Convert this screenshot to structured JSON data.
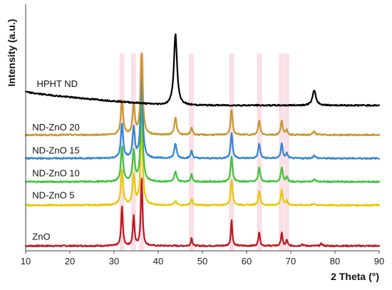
{
  "chart_data": {
    "type": "line",
    "title": "",
    "xlabel": "2 Theta (°)",
    "ylabel": "Intensity (a.u.)",
    "xlim": [
      10,
      90
    ],
    "ylim": [
      0,
      100
    ],
    "xticks": [
      10,
      20,
      30,
      40,
      50,
      60,
      70,
      80,
      90
    ],
    "xtick_labels": [
      "10",
      "20",
      "30",
      "40",
      "50",
      "60",
      "70",
      "80",
      "90"
    ],
    "yticks_shown": false,
    "grid": false,
    "legend": "none",
    "highlight_bands": [
      {
        "x": 31.8,
        "color": "#f4b8c8"
      },
      {
        "x": 34.4,
        "color": "#f4b8c8"
      },
      {
        "x": 36.25,
        "color": "#f4b8c8"
      },
      {
        "x": 47.5,
        "color": "#f4b8c8"
      },
      {
        "x": 56.6,
        "color": "#f4b8c8"
      },
      {
        "x": 62.9,
        "color": "#f4b8c8"
      },
      {
        "x": 67.9,
        "color": "#f4b8c8"
      },
      {
        "x": 69.1,
        "color": "#f4b8c8"
      }
    ],
    "series": [
      {
        "name": "ZnO",
        "color": "#c0161e",
        "baseline": 2,
        "label_x": 11.5,
        "label_y": 4.5,
        "peaks": [
          {
            "x": 31.8,
            "h": 16,
            "w": 0.22
          },
          {
            "x": 34.45,
            "h": 12,
            "w": 0.22
          },
          {
            "x": 36.25,
            "h": 28,
            "w": 0.22
          },
          {
            "x": 47.55,
            "h": 3.5,
            "w": 0.18
          },
          {
            "x": 56.6,
            "h": 10.5,
            "w": 0.2
          },
          {
            "x": 62.85,
            "h": 6,
            "w": 0.2
          },
          {
            "x": 67.95,
            "h": 5.5,
            "w": 0.2
          },
          {
            "x": 69.1,
            "h": 2.5,
            "w": 0.18
          },
          {
            "x": 72.6,
            "h": 0.8,
            "w": 0.2
          },
          {
            "x": 76.95,
            "h": 1,
            "w": 0.2
          }
        ]
      },
      {
        "name": "ND-ZnO 5",
        "color": "#e8c800",
        "baseline": 18.5,
        "label_x": 11.5,
        "label_y": 21.3,
        "peaks": [
          {
            "x": 31.8,
            "h": 14,
            "w": 0.3
          },
          {
            "x": 34.45,
            "h": 12,
            "w": 0.3
          },
          {
            "x": 36.25,
            "h": 33,
            "w": 0.3
          },
          {
            "x": 43.9,
            "h": 1.5,
            "w": 0.3
          },
          {
            "x": 47.55,
            "h": 2.5,
            "w": 0.25
          },
          {
            "x": 56.6,
            "h": 10.5,
            "w": 0.25
          },
          {
            "x": 62.85,
            "h": 6,
            "w": 0.25
          },
          {
            "x": 67.95,
            "h": 6,
            "w": 0.25
          },
          {
            "x": 69.1,
            "h": 2,
            "w": 0.22
          },
          {
            "x": 75.3,
            "h": 0.6,
            "w": 0.3
          }
        ]
      },
      {
        "name": "ND-ZnO 10",
        "color": "#3cc43c",
        "baseline": 28,
        "label_x": 11.5,
        "label_y": 30.2,
        "peaks": [
          {
            "x": 31.8,
            "h": 14,
            "w": 0.3
          },
          {
            "x": 34.45,
            "h": 12,
            "w": 0.3
          },
          {
            "x": 36.25,
            "h": 33,
            "w": 0.3
          },
          {
            "x": 43.9,
            "h": 4,
            "w": 0.3
          },
          {
            "x": 47.55,
            "h": 3,
            "w": 0.25
          },
          {
            "x": 56.6,
            "h": 10.5,
            "w": 0.25
          },
          {
            "x": 62.85,
            "h": 6,
            "w": 0.25
          },
          {
            "x": 67.95,
            "h": 6,
            "w": 0.25
          },
          {
            "x": 69.1,
            "h": 2,
            "w": 0.22
          },
          {
            "x": 75.3,
            "h": 1,
            "w": 0.3
          }
        ]
      },
      {
        "name": "ND-ZnO 15",
        "color": "#2e86d8",
        "baseline": 37.5,
        "label_x": 11.5,
        "label_y": 39.5,
        "peaks": [
          {
            "x": 31.8,
            "h": 14,
            "w": 0.3
          },
          {
            "x": 34.45,
            "h": 12,
            "w": 0.3
          },
          {
            "x": 36.25,
            "h": 33,
            "w": 0.3
          },
          {
            "x": 43.9,
            "h": 6,
            "w": 0.3
          },
          {
            "x": 47.55,
            "h": 3,
            "w": 0.25
          },
          {
            "x": 56.6,
            "h": 10.5,
            "w": 0.25
          },
          {
            "x": 62.85,
            "h": 6,
            "w": 0.25
          },
          {
            "x": 67.95,
            "h": 6,
            "w": 0.25
          },
          {
            "x": 69.1,
            "h": 2,
            "w": 0.22
          },
          {
            "x": 75.3,
            "h": 1.2,
            "w": 0.3
          }
        ]
      },
      {
        "name": "ND-ZnO 20",
        "color": "#c8962a",
        "baseline": 47,
        "label_x": 11.5,
        "label_y": 48.8,
        "peaks": [
          {
            "x": 31.8,
            "h": 14,
            "w": 0.3
          },
          {
            "x": 34.45,
            "h": 12,
            "w": 0.3
          },
          {
            "x": 36.25,
            "h": 33,
            "w": 0.3
          },
          {
            "x": 43.9,
            "h": 7,
            "w": 0.3
          },
          {
            "x": 47.55,
            "h": 3,
            "w": 0.25
          },
          {
            "x": 56.6,
            "h": 10.5,
            "w": 0.25
          },
          {
            "x": 62.85,
            "h": 6,
            "w": 0.25
          },
          {
            "x": 67.95,
            "h": 6,
            "w": 0.25
          },
          {
            "x": 69.1,
            "h": 2,
            "w": 0.22
          },
          {
            "x": 75.3,
            "h": 1.5,
            "w": 0.3
          }
        ]
      },
      {
        "name": "HPHT ND",
        "color": "#000000",
        "baseline": 59,
        "slope_start": 64.5,
        "slope_end_x": 42,
        "label_x": 12.5,
        "label_y": 66.5,
        "peaks": [
          {
            "x": 43.9,
            "h": 29,
            "w": 0.42
          },
          {
            "x": 75.3,
            "h": 6,
            "w": 0.45
          }
        ]
      }
    ]
  }
}
